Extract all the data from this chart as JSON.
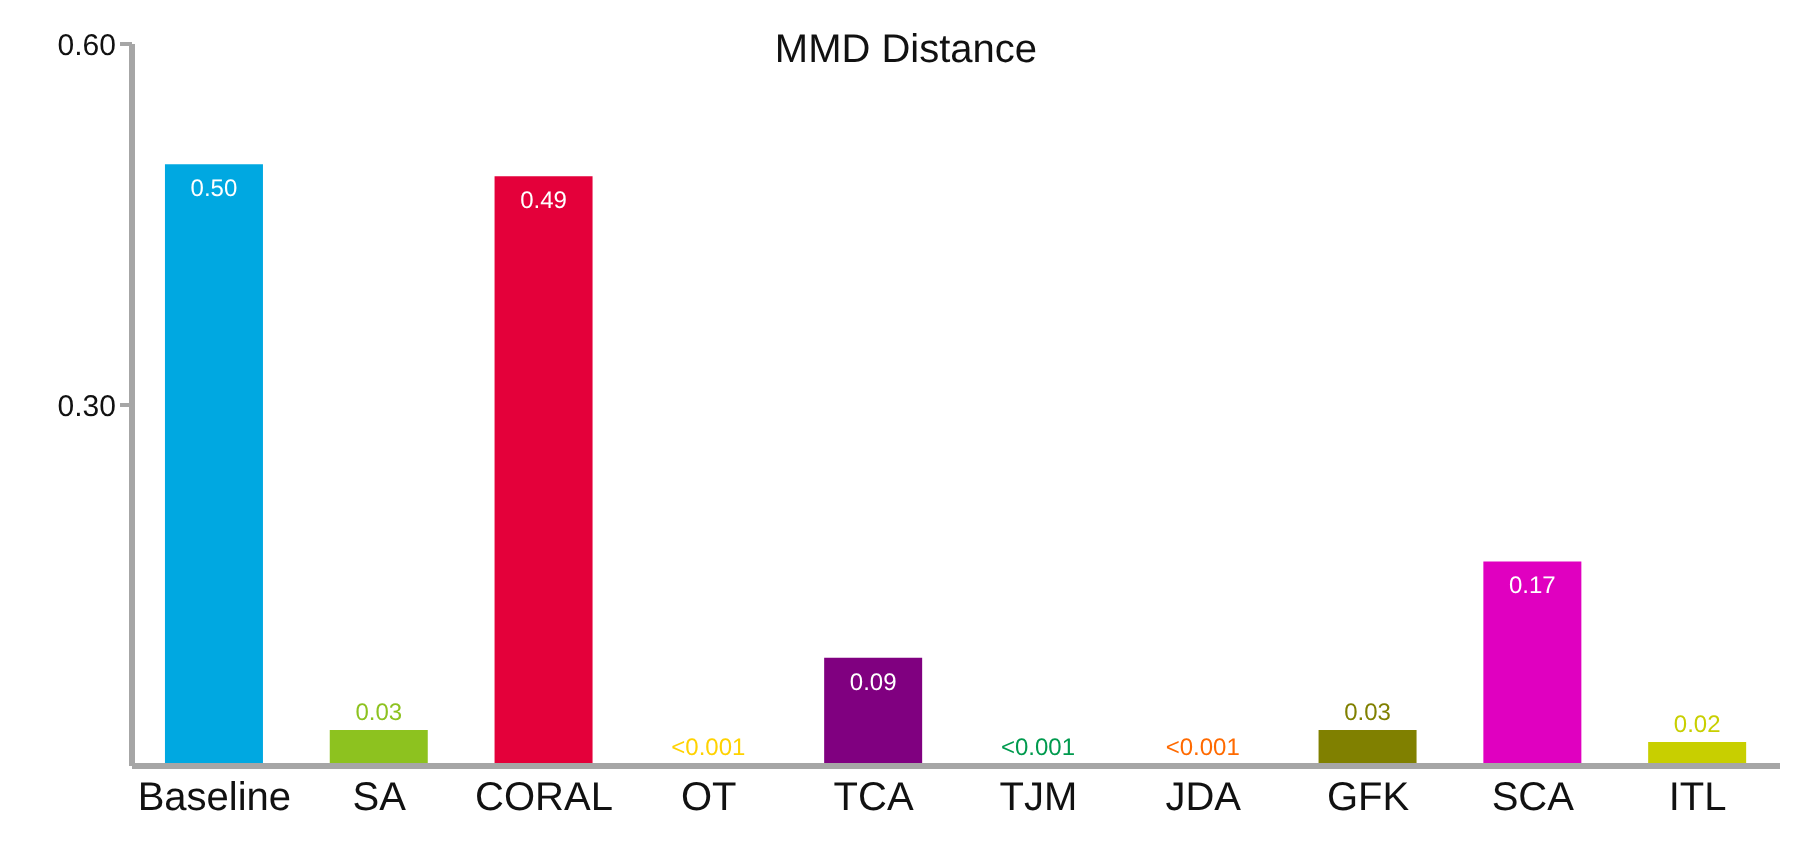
{
  "chart_data": {
    "type": "bar",
    "title": "MMD Distance",
    "categories": [
      "Baseline",
      "SA",
      "CORAL",
      "OT",
      "TCA",
      "TJM",
      "JDA",
      "GFK",
      "SCA",
      "ITL"
    ],
    "values": [
      0.5,
      0.03,
      0.49,
      0.001,
      0.09,
      0.001,
      0.001,
      0.03,
      0.17,
      0.02
    ],
    "value_labels": [
      "0.50",
      "0.03",
      "0.49",
      "<0.001",
      "0.09",
      "<0.001",
      "<0.001",
      "0.03",
      "0.17",
      "0.02"
    ],
    "colors": [
      "#00a8e1",
      "#8dc21f",
      "#e4003a",
      "#ffd200",
      "#800080",
      "#009a4e",
      "#ff6a00",
      "#808000",
      "#e000c0",
      "#c8cf00"
    ],
    "ylim": [
      0,
      0.6
    ],
    "yticks": [
      {
        "value": 0.3,
        "label": "0.30"
      },
      {
        "value": 0.6,
        "label": "0.60"
      }
    ],
    "grid": false,
    "legend": false
  }
}
